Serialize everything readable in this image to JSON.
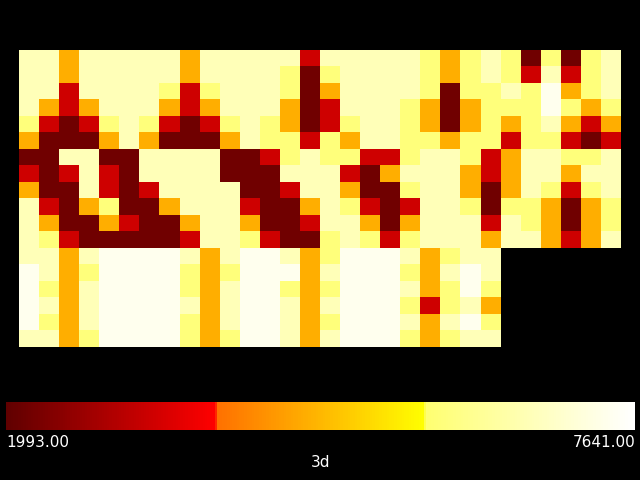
{
  "chart_data": {
    "type": "heatmap",
    "title": "3d",
    "tick_labels": false,
    "colorbar_range": [
      1993,
      7641
    ],
    "colorbar_ticks": [
      {
        "value": 1993,
        "label": "1993.00"
      },
      {
        "value": 7641,
        "label": "7641.00"
      }
    ],
    "cells": [
      [
        6700,
        6700,
        4700,
        6700,
        6700,
        6700,
        6700,
        6700,
        4700,
        6700,
        6700,
        6700,
        6700,
        6700,
        3300,
        6700,
        6700,
        6700,
        6700,
        6700,
        5900,
        4700,
        5900,
        6700,
        5900,
        2200,
        5900,
        2200,
        5900,
        6700
      ],
      [
        6700,
        6700,
        4700,
        6700,
        6700,
        6700,
        6700,
        6700,
        4700,
        6700,
        6700,
        6700,
        6700,
        5900,
        2200,
        5900,
        6700,
        6700,
        6700,
        6700,
        5900,
        4700,
        5900,
        6700,
        5900,
        3300,
        6700,
        3300,
        5900,
        6700
      ],
      [
        6700,
        6700,
        3300,
        6700,
        6700,
        6700,
        6700,
        5900,
        3300,
        5900,
        6700,
        6700,
        6700,
        5900,
        2200,
        4700,
        6700,
        6700,
        6700,
        6700,
        5900,
        2200,
        5900,
        5900,
        6700,
        5900,
        7400,
        4700,
        5900,
        6700
      ],
      [
        6700,
        4700,
        3300,
        4700,
        6700,
        6700,
        6700,
        4700,
        3300,
        4700,
        6700,
        6700,
        6700,
        4700,
        2200,
        3300,
        6700,
        6700,
        6700,
        5900,
        4700,
        2200,
        4700,
        5900,
        5900,
        5900,
        7400,
        5900,
        4700,
        5900
      ],
      [
        5900,
        3300,
        2200,
        3300,
        5900,
        6700,
        5900,
        3300,
        2200,
        3300,
        5900,
        6700,
        5900,
        4700,
        2200,
        3300,
        5900,
        6700,
        6700,
        5900,
        4700,
        2200,
        4700,
        5900,
        4700,
        5900,
        6700,
        4700,
        3300,
        4700
      ],
      [
        4700,
        2200,
        2200,
        2200,
        4700,
        6700,
        4700,
        2200,
        2200,
        2200,
        4700,
        6700,
        5900,
        5900,
        3300,
        5900,
        4700,
        6700,
        6700,
        5900,
        5900,
        4700,
        5900,
        5900,
        3300,
        5900,
        5900,
        3300,
        2200,
        3300
      ],
      [
        2200,
        2200,
        6700,
        6700,
        2200,
        2200,
        6700,
        6700,
        6700,
        6700,
        2200,
        2200,
        3300,
        5900,
        6700,
        5900,
        5900,
        3300,
        3300,
        5900,
        6700,
        6700,
        5900,
        3300,
        4700,
        6700,
        6700,
        5900,
        5900,
        6700
      ],
      [
        3300,
        2200,
        3300,
        6700,
        3300,
        2200,
        6700,
        6700,
        6700,
        6700,
        2200,
        2200,
        2200,
        6700,
        6700,
        6700,
        3300,
        2200,
        4700,
        6700,
        6700,
        6700,
        4700,
        3300,
        4700,
        6700,
        6700,
        4700,
        6700,
        6700
      ],
      [
        4700,
        2200,
        2200,
        6700,
        3300,
        2200,
        3300,
        6700,
        6700,
        6700,
        6700,
        2200,
        2200,
        3300,
        6700,
        6700,
        4700,
        2200,
        2200,
        5900,
        6700,
        6700,
        4700,
        2200,
        4700,
        6700,
        5900,
        3300,
        5900,
        6700
      ],
      [
        6700,
        3300,
        2200,
        4700,
        5900,
        2200,
        2200,
        4700,
        6700,
        6700,
        6700,
        3300,
        2200,
        2200,
        4700,
        6700,
        5900,
        3300,
        2200,
        3300,
        6700,
        6700,
        5900,
        2200,
        5900,
        5900,
        4700,
        2200,
        4700,
        5900
      ],
      [
        6700,
        4700,
        2200,
        2200,
        4700,
        3300,
        2200,
        2200,
        4700,
        6700,
        6700,
        4700,
        2200,
        2200,
        3300,
        6700,
        6700,
        4700,
        2200,
        4700,
        6700,
        6700,
        6700,
        3300,
        6700,
        5900,
        4700,
        2200,
        4700,
        5900
      ],
      [
        6700,
        5900,
        3300,
        2200,
        2200,
        2200,
        2200,
        2200,
        3300,
        6700,
        6700,
        5900,
        3300,
        2200,
        2200,
        5900,
        6700,
        5900,
        3300,
        5900,
        6700,
        6700,
        6700,
        4700,
        6700,
        6700,
        4700,
        3300,
        4700,
        6700
      ],
      [
        6700,
        6700,
        4700,
        6700,
        7400,
        7400,
        7400,
        7400,
        6700,
        4700,
        6700,
        7400,
        7400,
        6700,
        4700,
        5900,
        7400,
        7400,
        7400,
        6700,
        4700,
        5900,
        6700,
        6700,
        null,
        null,
        null,
        null,
        null,
        null
      ],
      [
        7400,
        6700,
        4700,
        5900,
        7400,
        7400,
        7400,
        7400,
        5900,
        4700,
        5900,
        7400,
        7400,
        7400,
        4700,
        6700,
        7400,
        7400,
        7400,
        5900,
        4700,
        6700,
        7400,
        6700,
        null,
        null,
        null,
        null,
        null,
        null
      ],
      [
        7400,
        5900,
        4700,
        6700,
        7400,
        7400,
        7400,
        7400,
        5900,
        4700,
        6700,
        7400,
        7400,
        5900,
        4700,
        5900,
        7400,
        7400,
        7400,
        6700,
        4700,
        5900,
        7400,
        5900,
        null,
        null,
        null,
        null,
        null,
        null
      ],
      [
        7400,
        6700,
        4700,
        6700,
        7400,
        7400,
        7400,
        7400,
        6700,
        4700,
        6700,
        7400,
        7400,
        6700,
        4700,
        6700,
        7400,
        7400,
        7400,
        5900,
        3300,
        5900,
        6700,
        4700,
        null,
        null,
        null,
        null,
        null,
        null
      ],
      [
        7400,
        5900,
        4700,
        6700,
        7400,
        7400,
        7400,
        7400,
        5900,
        4700,
        6700,
        7400,
        7400,
        6700,
        4700,
        5900,
        7400,
        7400,
        7400,
        6700,
        4700,
        6700,
        7400,
        5900,
        null,
        null,
        null,
        null,
        null,
        null
      ],
      [
        6700,
        6700,
        4700,
        5900,
        7400,
        7400,
        7400,
        7400,
        5900,
        4700,
        5900,
        7400,
        7400,
        6700,
        4700,
        6700,
        7400,
        7400,
        7400,
        5900,
        4700,
        5900,
        6700,
        6700,
        null,
        null,
        null,
        null,
        null,
        null
      ]
    ]
  }
}
